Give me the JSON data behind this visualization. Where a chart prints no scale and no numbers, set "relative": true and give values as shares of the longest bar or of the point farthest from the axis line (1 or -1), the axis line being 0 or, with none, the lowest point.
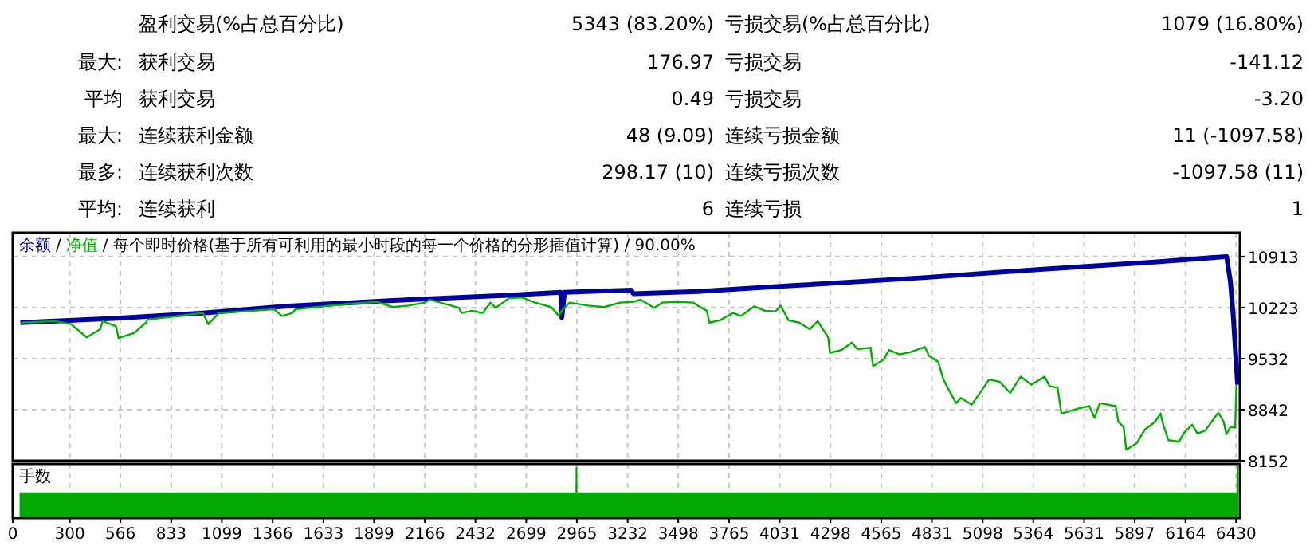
{
  "chart_data": [
    {
      "type": "other",
      "annotations": [
        "盈利交易(%占总百分比)",
        "5343 (83.20%)",
        "亏损交易(%占总百分比)",
        "1079 (16.80%)",
        "最大:",
        "获利交易",
        "176.97",
        "亏损交易",
        "-141.12",
        "平均",
        "获利交易",
        "0.49",
        "亏损交易",
        "-3.20",
        "最大:",
        "连续获利金额",
        "48 (9.09)",
        "连续亏损金额",
        "11 (-1097.58)",
        "最多:",
        "连续获利次数",
        "298.17 (10)",
        "连续亏损次数",
        "-1097.58 (11)",
        "平均:",
        "连续获利",
        "6",
        "连续亏损",
        "1"
      ]
    },
    {
      "type": "line",
      "title": "每个即时价格(基于所有可利用的最小时段的每一个价格的分形插值计算) / 90.00%",
      "annotations": [
        "/",
        "/"
      ],
      "legend": "top left",
      "grid": true,
      "tick_labels": "y",
      "xlim": [
        0,
        6450
      ],
      "xticks": [
        0,
        300,
        566,
        833,
        1099,
        1366,
        1633,
        1899,
        2166,
        2432,
        2699,
        2965,
        3232,
        3498,
        3765,
        4031,
        4298,
        4565,
        4831,
        5098,
        5364,
        5631,
        5897,
        6164,
        6430
      ],
      "ylim": [
        8152,
        11235
      ],
      "yticks": [
        8152,
        8842,
        9532,
        10223,
        10913
      ],
      "series": [
        {
          "name": "余额",
          "color": "#0000a0",
          "x": [
            40,
            550,
            1000,
            1430,
            2000,
            2600,
            2880,
            2886,
            2900,
            3250,
            3262,
            3600,
            4100,
            4800,
            5400,
            6000,
            6380,
            6400,
            6415,
            6438
          ],
          "values": [
            10020,
            10080,
            10150,
            10240,
            10320,
            10390,
            10430,
            10090,
            10430,
            10460,
            10410,
            10440,
            10520,
            10630,
            10740,
            10840,
            10913,
            10580,
            10120,
            9180
          ]
        },
        {
          "name": "净值",
          "color": "#00b000",
          "x": [
            43,
            223,
            306,
            389,
            459,
            473,
            543,
            556,
            639,
            700,
            708,
            1000,
            1027,
            1069,
            1083,
            1374,
            1415,
            1471,
            1485,
            1748,
            1915,
            1998,
            2081,
            2164,
            2192,
            2345,
            2359,
            2414,
            2469,
            2511,
            2538,
            2608,
            2677,
            2746,
            2830,
            2871,
            2885,
            2927,
            3024,
            3108,
            3191,
            3260,
            3301,
            3371,
            3413,
            3495,
            3578,
            3606,
            3648,
            3662,
            3717,
            3787,
            3828,
            3898,
            3953,
            4009,
            4036,
            4078,
            4134,
            4189,
            4231,
            4286,
            4295,
            4356,
            4411,
            4439,
            4509,
            4522,
            4578,
            4606,
            4661,
            4716,
            4794,
            4816,
            4864,
            4892,
            4920,
            4959,
            4983,
            5041,
            5084,
            5132,
            5187,
            5243,
            5298,
            5354,
            5423,
            5450,
            5492,
            5512,
            5603,
            5659,
            5686,
            5714,
            5797,
            5811,
            5839,
            5853,
            5908,
            5950,
            6005,
            6033,
            6047,
            6074,
            6130,
            6157,
            6199,
            6227,
            6268,
            6310,
            6337,
            6365,
            6379,
            6401,
            6425,
            6432
          ],
          "values": [
            10020,
            10040,
            10000,
            9820,
            9930,
            10040,
            9970,
            9810,
            9880,
            10020,
            10060,
            10150,
            10000,
            10110,
            10150,
            10200,
            10110,
            10150,
            10200,
            10270,
            10300,
            10230,
            10250,
            10290,
            10330,
            10220,
            10150,
            10180,
            10150,
            10290,
            10220,
            10350,
            10360,
            10290,
            10230,
            10110,
            10180,
            10290,
            10250,
            10230,
            10290,
            10300,
            10330,
            10220,
            10290,
            10300,
            10290,
            10240,
            10180,
            10020,
            10050,
            10150,
            10110,
            10240,
            10180,
            10170,
            10250,
            10050,
            10020,
            9930,
            10040,
            9820,
            9610,
            9650,
            9750,
            9660,
            9680,
            9430,
            9520,
            9650,
            9590,
            9620,
            9690,
            9570,
            9490,
            9250,
            9110,
            8930,
            9000,
            8910,
            9070,
            9250,
            9220,
            9070,
            9290,
            9180,
            9290,
            9160,
            9140,
            8790,
            8860,
            8890,
            8730,
            8930,
            8890,
            8680,
            8610,
            8300,
            8390,
            8570,
            8680,
            8790,
            8640,
            8430,
            8410,
            8530,
            8640,
            8520,
            8560,
            8710,
            8800,
            8680,
            8510,
            8610,
            8600,
            9180
          ]
        }
      ]
    },
    {
      "type": "area",
      "title": "手数",
      "relative": true,
      "grid": "x",
      "tick_labels": "x",
      "color": "#00a800",
      "xlim": [
        0,
        6450
      ],
      "xticks": [
        0,
        300,
        566,
        833,
        1099,
        1366,
        1633,
        1899,
        2166,
        2432,
        2699,
        2965,
        3232,
        3498,
        3765,
        4031,
        4298,
        4565,
        4831,
        5098,
        5364,
        5631,
        5897,
        6164,
        6430
      ],
      "x": [
        40,
        2962,
        2963,
        2964,
        6436,
        6437,
        6438
      ],
      "values": [
        0.47,
        0.47,
        1,
        0.47,
        0.47,
        1,
        1
      ]
    }
  ]
}
